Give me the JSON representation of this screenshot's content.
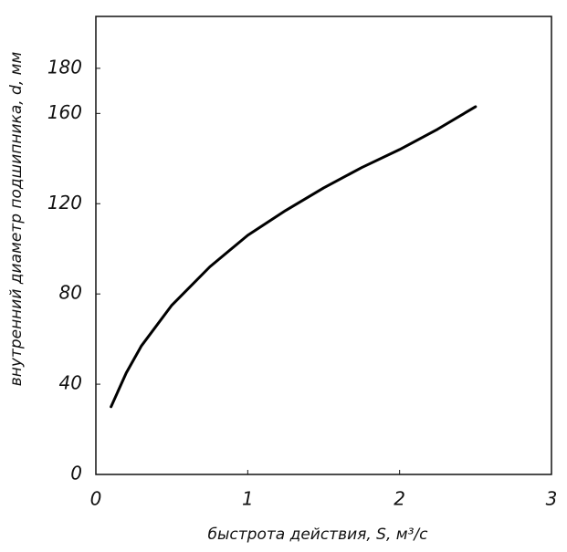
{
  "chart_data": {
    "type": "line",
    "x_label": "быстрота действия, S, м³/с",
    "y_label": "внутренний диаметр подшипника, d, мм",
    "series": [
      {
        "color": "#000000",
        "x": [
          0.1,
          0.2,
          0.3,
          0.5,
          0.75,
          1.0,
          1.25,
          1.5,
          1.75,
          2.0,
          2.25,
          2.5
        ],
        "values": [
          30,
          45,
          57,
          75,
          92,
          106,
          117,
          127,
          136,
          144,
          153,
          163
        ]
      }
    ],
    "xlim": [
      0,
      3
    ],
    "xticks": [
      0,
      1,
      2,
      3
    ],
    "ylim": [
      0,
      203
    ],
    "yticks": [
      0,
      40,
      80,
      120,
      160,
      180
    ],
    "grid": false
  }
}
